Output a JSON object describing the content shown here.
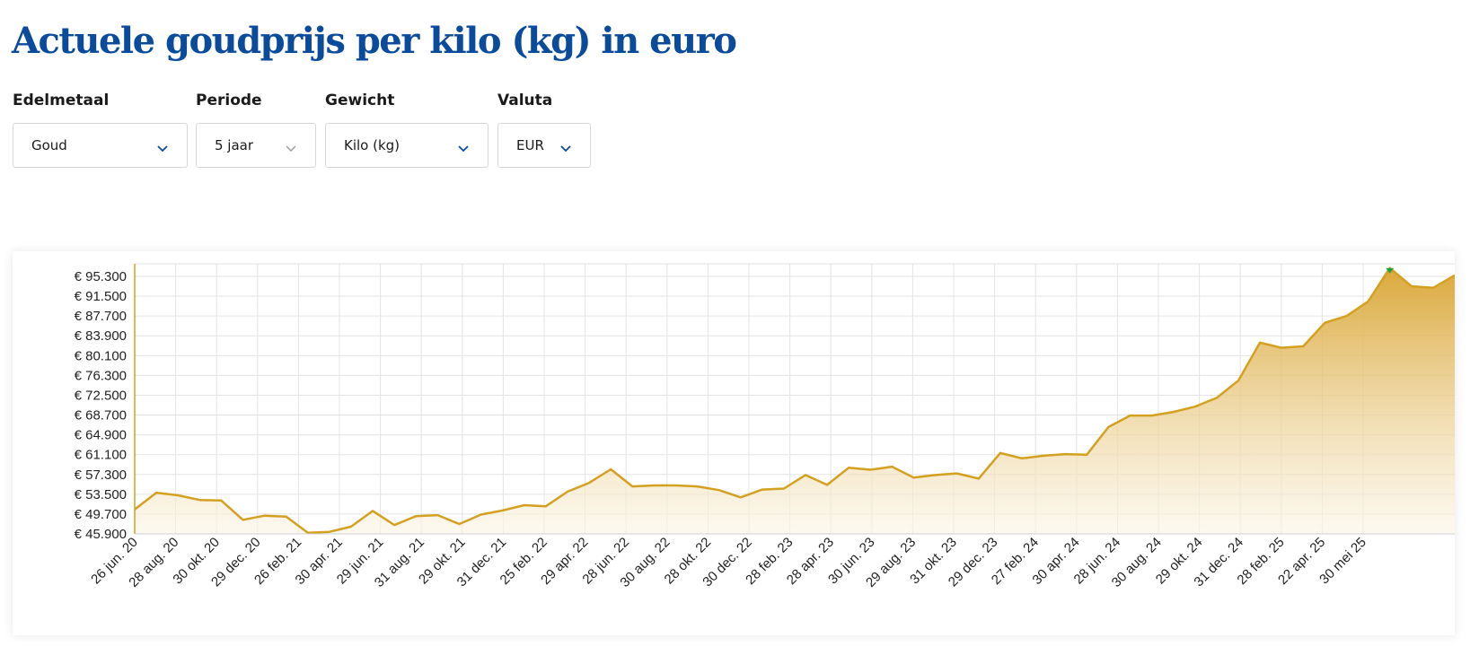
{
  "page": {
    "title": "Actuele goudprijs per kilo (kg) in euro"
  },
  "filters": [
    {
      "label": "Edelmetaal",
      "value": "Goud"
    },
    {
      "label": "Periode",
      "value": "5 jaar"
    },
    {
      "label": "Gewicht",
      "value": "Kilo (kg)"
    },
    {
      "label": "Valuta",
      "value": "EUR"
    }
  ],
  "colors": {
    "title": "#0b4b9c",
    "line": "#d4a020",
    "fill_top": "#d9a431",
    "fill_bottom": "#fbf5e6",
    "peak_marker": "#22a33a",
    "chevron": "#0b4b9c"
  },
  "icons": {
    "select_chevron": "chevron-down-icon"
  },
  "chart_data": {
    "type": "area",
    "title": "",
    "xlabel": "",
    "ylabel": "",
    "ylim": [
      45900,
      97000
    ],
    "grid": true,
    "y_ticks": [
      "€ 95.300",
      "€ 91.500",
      "€ 87.700",
      "€ 83.900",
      "€ 80.100",
      "€ 76.300",
      "€ 72.500",
      "€ 68.700",
      "€ 64.900",
      "€ 61.100",
      "€ 57.300",
      "€ 53.500",
      "€ 49.700",
      "€ 45.900"
    ],
    "x_ticks": [
      "26 jun. 20",
      "28 aug. 20",
      "30 okt. 20",
      "29 dec. 20",
      "26 feb. 21",
      "30 apr. 21",
      "29 jun. 21",
      "31 aug. 21",
      "29 okt. 21",
      "31 dec. 21",
      "25 feb. 22",
      "29 apr. 22",
      "28 jun. 22",
      "30 aug. 22",
      "28 okt. 22",
      "30 dec. 22",
      "28 feb. 23",
      "28 apr. 23",
      "30 jun. 23",
      "29 aug. 23",
      "31 okt. 23",
      "29 dec. 23",
      "27 feb. 24",
      "30 apr. 24",
      "28 jun. 24",
      "30 aug. 24",
      "29 okt. 24",
      "31 dec. 24",
      "28 feb. 25",
      "22 apr. 25",
      "30 mei 25"
    ],
    "series": [
      {
        "values": [
          50600,
          53800,
          53300,
          52400,
          52300,
          48600,
          49400,
          49200,
          46100,
          46300,
          47300,
          50300,
          47600,
          49300,
          49500,
          47800,
          49600,
          50400,
          51400,
          51200,
          54000,
          55700,
          58300,
          55000,
          55200,
          55200,
          55000,
          54300,
          52900,
          54400,
          54600,
          57200,
          55300,
          58600,
          58200,
          58800,
          56700,
          57200,
          57500,
          56500,
          61400,
          60400,
          60900,
          61200,
          61100,
          66400,
          68600,
          68600,
          69300,
          70300,
          72000,
          75300,
          82600,
          81600,
          81900,
          86400,
          87700,
          90500,
          96900,
          93400,
          93100,
          95500
        ]
      }
    ],
    "peak": {
      "value": 96900,
      "index": 58
    }
  }
}
